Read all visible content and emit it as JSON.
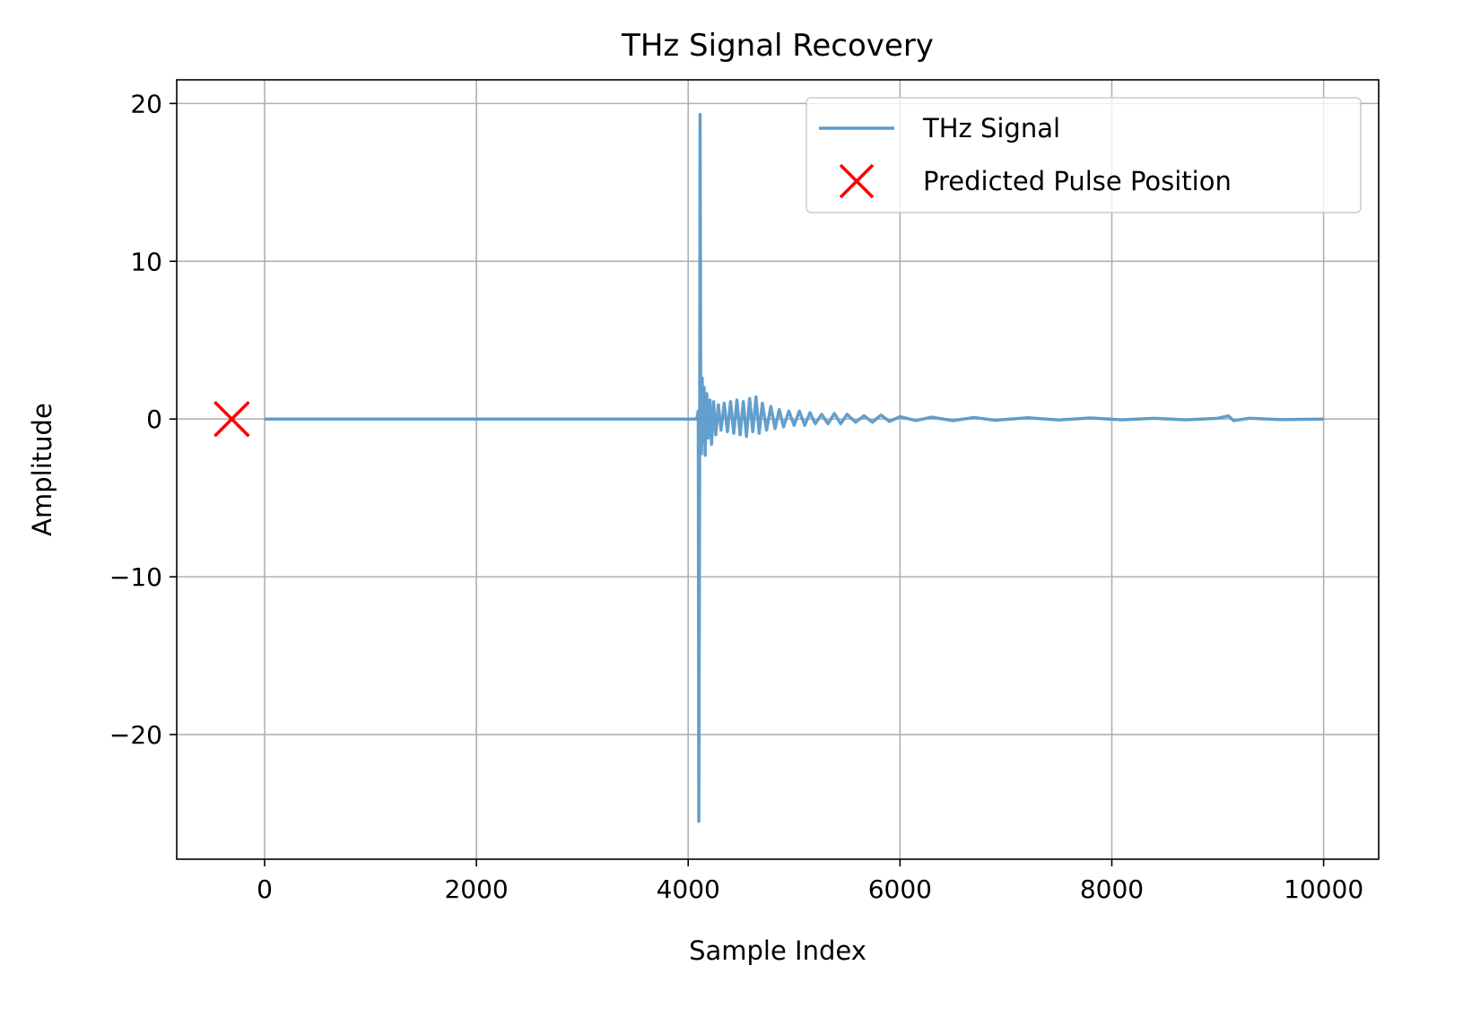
{
  "chart_data": {
    "type": "line",
    "title": "THz Signal Recovery",
    "xlabel": "Sample Index",
    "ylabel": "Amplitude",
    "xlim": [
      -830,
      10520
    ],
    "ylim": [
      -27.9,
      21.5
    ],
    "xticks": [
      0,
      2000,
      4000,
      6000,
      8000,
      10000
    ],
    "xtick_labels": [
      "0",
      "2000",
      "4000",
      "6000",
      "8000",
      "10000"
    ],
    "yticks": [
      -20,
      -10,
      0,
      10,
      20
    ],
    "ytick_labels": [
      "−20",
      "−10",
      "0",
      "10",
      "20"
    ],
    "grid": true,
    "legend_placement": "top-right",
    "series": [
      {
        "name": "THz Signal",
        "kind": "line",
        "color": "#5b9ac9",
        "x": [
          0,
          4080,
          4095,
          4100,
          4108,
          4112,
          4118,
          4125,
          4132,
          4140,
          4150,
          4160,
          4175,
          4190,
          4205,
          4220,
          4240,
          4260,
          4285,
          4310,
          4340,
          4370,
          4400,
          4430,
          4460,
          4490,
          4520,
          4550,
          4580,
          4610,
          4640,
          4670,
          4700,
          4740,
          4780,
          4820,
          4860,
          4900,
          4950,
          5000,
          5050,
          5100,
          5150,
          5200,
          5260,
          5320,
          5380,
          5440,
          5500,
          5580,
          5660,
          5740,
          5820,
          5900,
          6000,
          6150,
          6300,
          6500,
          6700,
          6900,
          7200,
          7500,
          7800,
          8100,
          8400,
          8700,
          9000,
          9100,
          9150,
          9300,
          9600,
          10000
        ],
        "y": [
          0,
          0,
          0.5,
          -25.5,
          -3,
          19.3,
          2.5,
          -2.2,
          2.6,
          -1.5,
          2.0,
          -2.3,
          1.6,
          -1.2,
          1.2,
          -1.6,
          1.1,
          -1.0,
          0.9,
          -0.7,
          1.0,
          -0.8,
          1.1,
          -0.9,
          1.2,
          -1.0,
          1.1,
          -1.1,
          1.3,
          -0.8,
          1.4,
          -0.9,
          1.0,
          -0.7,
          0.8,
          -0.6,
          0.6,
          -0.5,
          0.5,
          -0.4,
          0.5,
          -0.4,
          0.4,
          -0.3,
          0.3,
          -0.3,
          0.35,
          -0.3,
          0.3,
          -0.2,
          0.2,
          -0.2,
          0.25,
          -0.15,
          0.15,
          -0.1,
          0.12,
          -0.1,
          0.1,
          -0.08,
          0.08,
          -0.06,
          0.07,
          -0.05,
          0.05,
          -0.05,
          0.05,
          0.2,
          -0.1,
          0.05,
          -0.04,
          0
        ]
      },
      {
        "name": "Predicted Pulse Position",
        "kind": "marker",
        "marker": "x",
        "color": "#ff0000",
        "x": [
          -310
        ],
        "y": [
          0
        ]
      }
    ]
  }
}
